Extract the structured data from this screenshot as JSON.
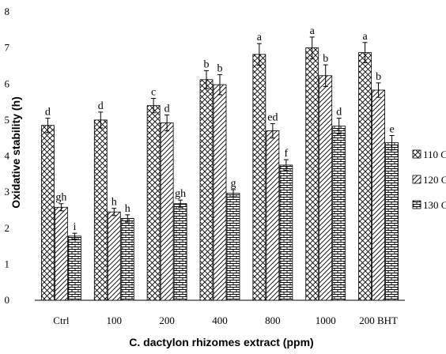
{
  "chart_data": {
    "type": "bar",
    "xlabel": "C. dactylon rhizomes extract (ppm)",
    "ylabel": "Oxidative stability (h)",
    "ylim": [
      0,
      8
    ],
    "yticks": [
      0,
      1,
      2,
      3,
      4,
      5,
      6,
      7,
      8
    ],
    "categories": [
      "Ctrl",
      "100",
      "200",
      "400",
      "800",
      "1000",
      "200 BHT"
    ],
    "legend_position": "right",
    "grid": false,
    "series": [
      {
        "name": "110 C",
        "pattern": "crosshatch",
        "values": [
          4.85,
          5.0,
          5.4,
          6.12,
          6.82,
          7.0,
          6.87
        ],
        "errors": [
          0.2,
          0.22,
          0.2,
          0.25,
          0.3,
          0.3,
          0.28
        ],
        "letters": [
          "d",
          "d",
          "c",
          "b",
          "a",
          "a",
          "a"
        ]
      },
      {
        "name": "120 C",
        "pattern": "diagonal",
        "values": [
          2.58,
          2.45,
          4.92,
          5.98,
          4.7,
          6.23,
          5.83
        ],
        "errors": [
          0.1,
          0.1,
          0.22,
          0.28,
          0.2,
          0.3,
          0.2
        ],
        "letters": [
          "gh",
          "h",
          "d",
          "b",
          "ed",
          "b",
          "b"
        ]
      },
      {
        "name": "130 C",
        "pattern": "brick",
        "values": [
          1.78,
          2.27,
          2.68,
          2.97,
          3.75,
          4.83,
          4.37
        ],
        "errors": [
          0.08,
          0.1,
          0.1,
          0.1,
          0.15,
          0.22,
          0.2
        ],
        "letters": [
          "i",
          "h",
          "gh",
          "g",
          "f",
          "d",
          "e"
        ]
      }
    ]
  }
}
